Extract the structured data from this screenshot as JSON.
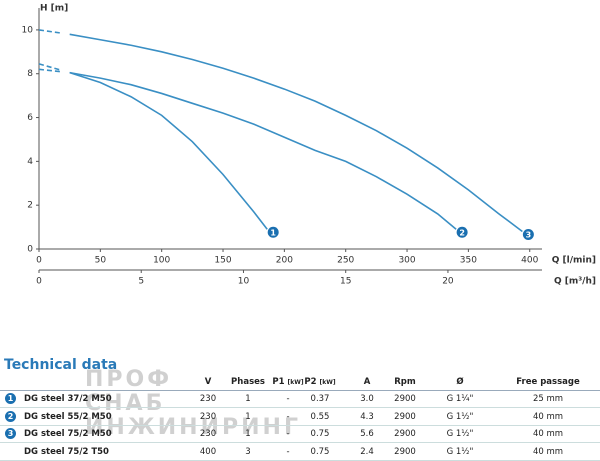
{
  "chart_data": {
    "type": "line",
    "ylabel": "H [m]",
    "xlabel": "Q [l/min]",
    "x2label": "Q [m³/h]",
    "xlim": [
      0,
      410
    ],
    "xticks": [
      0,
      50,
      100,
      150,
      200,
      250,
      300,
      350,
      400
    ],
    "x2lim": [
      0,
      24.6
    ],
    "x2ticks": [
      0,
      5,
      10,
      15,
      20
    ],
    "ylim": [
      0,
      11
    ],
    "yticks": [
      0,
      2,
      4,
      6,
      8,
      10
    ],
    "lead_dashed": true,
    "series": [
      {
        "name": "1",
        "color": "#3a8fc4",
        "x": [
          0,
          25,
          50,
          75,
          100,
          125,
          150,
          175,
          186
        ],
        "values": [
          8.45,
          8.05,
          7.6,
          6.95,
          6.1,
          4.9,
          3.4,
          1.7,
          0.9
        ]
      },
      {
        "name": "2",
        "color": "#3a8fc4",
        "x": [
          0,
          25,
          50,
          75,
          100,
          125,
          150,
          175,
          200,
          225,
          250,
          275,
          300,
          325,
          340
        ],
        "values": [
          8.2,
          8.05,
          7.8,
          7.5,
          7.1,
          6.65,
          6.2,
          5.7,
          5.1,
          4.5,
          4.0,
          3.3,
          2.5,
          1.6,
          0.9
        ]
      },
      {
        "name": "3",
        "color": "#3a8fc4",
        "x": [
          0,
          25,
          50,
          75,
          100,
          125,
          150,
          175,
          200,
          225,
          250,
          275,
          300,
          325,
          350,
          375,
          394
        ],
        "values": [
          10.0,
          9.8,
          9.55,
          9.3,
          9.0,
          8.65,
          8.25,
          7.8,
          7.3,
          6.75,
          6.1,
          5.4,
          4.6,
          3.7,
          2.7,
          1.6,
          0.8
        ]
      }
    ]
  },
  "table": {
    "title": "Technical data",
    "headers": [
      "",
      "V",
      "Phases",
      {
        "text": "P1",
        "unit": "[kW]"
      },
      {
        "text": "P2",
        "unit": "[kW]"
      },
      "A",
      "Rpm",
      "Ø",
      "Free passage"
    ],
    "rows": [
      {
        "marker": "1",
        "cells": [
          "DG steel 37/2 M50",
          "230",
          "1",
          "-",
          "0.37",
          "3.0",
          "2900",
          "G 1¼\"",
          "25 mm"
        ]
      },
      {
        "marker": "2",
        "cells": [
          "DG steel 55/2 M50",
          "230",
          "1",
          "-",
          "0.55",
          "4.3",
          "2900",
          "G 1½\"",
          "40 mm"
        ]
      },
      {
        "marker": "3",
        "cells": [
          "DG steel 75/2 M50",
          "230",
          "1",
          "-",
          "0.75",
          "5.6",
          "2900",
          "G 1½\"",
          "40 mm"
        ]
      },
      {
        "cells": [
          "DG steel 75/2 T50",
          "400",
          "3",
          "-",
          "0.75",
          "2.4",
          "2900",
          "G 1½\"",
          "40 mm"
        ]
      }
    ]
  },
  "watermark": [
    "ПРОФ",
    "СНАБ",
    "ИНЖИНИРИНГ"
  ]
}
